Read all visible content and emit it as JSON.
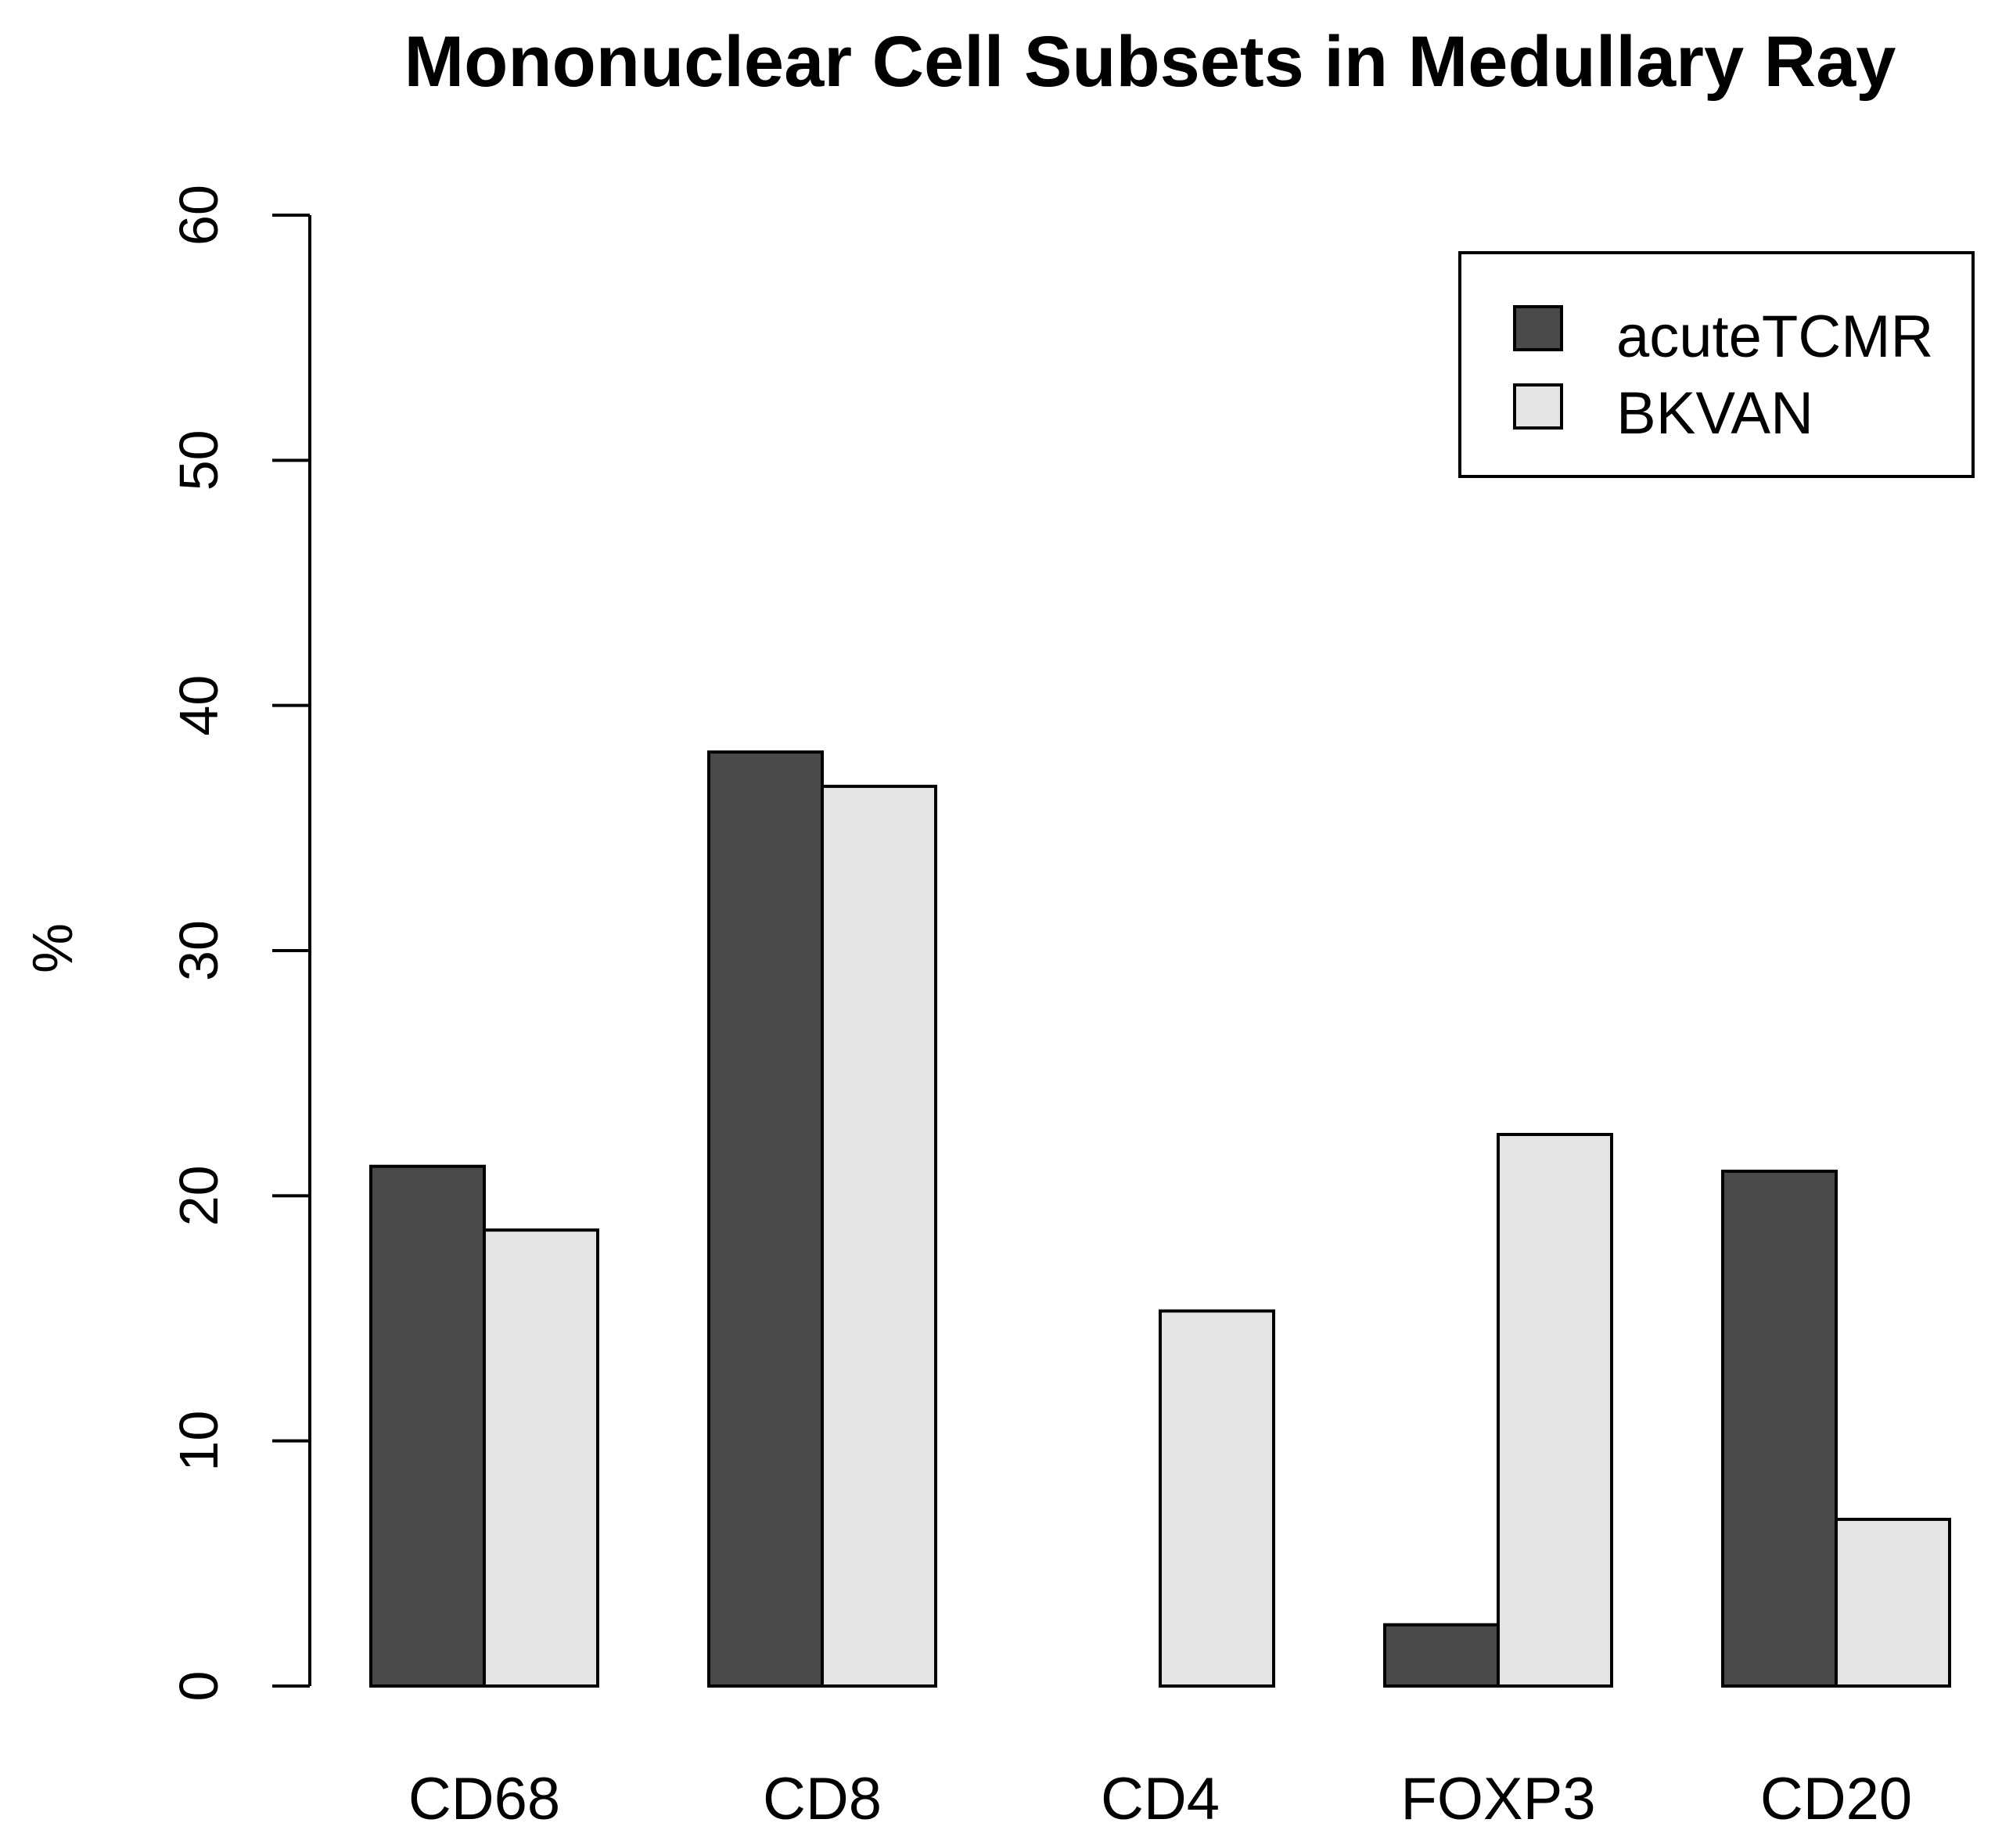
{
  "chart_data": {
    "type": "bar",
    "title": "Mononuclear Cell Subsets in Medullary Ray",
    "xlabel": "",
    "ylabel": "%",
    "ylim": [
      0,
      60
    ],
    "yticks": [
      0,
      10,
      20,
      30,
      40,
      50,
      60
    ],
    "categories": [
      "CD68",
      "CD8",
      "CD4",
      "FOXP3",
      "CD20"
    ],
    "series": [
      {
        "name": "acuteTCMR",
        "color": "#4a4a4a",
        "values": [
          21.2,
          38.1,
          0,
          2.5,
          21.0
        ]
      },
      {
        "name": "BKVAN",
        "color": "#e5e5e5",
        "values": [
          18.6,
          36.7,
          15.3,
          22.5,
          6.8
        ]
      }
    ],
    "legend_position": "top-right",
    "grid": false
  }
}
